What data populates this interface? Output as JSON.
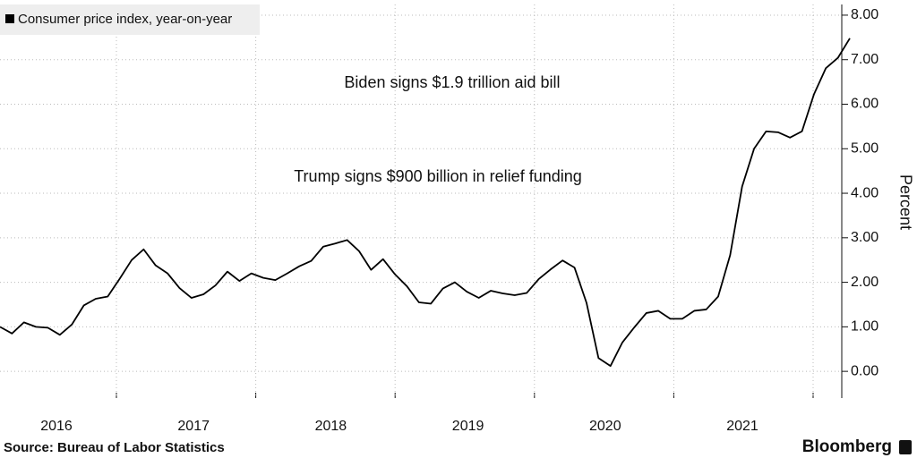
{
  "chart_data": {
    "type": "line",
    "legend_label": "Consumer price index, year-on-year",
    "annotations": [
      "Biden signs $1.9 trillion aid bill",
      "Trump signs $900 billion in relief funding"
    ],
    "y_axis_label": "Percent",
    "source": "Source: Bureau of Labor Statistics",
    "brand": "Bloomberg",
    "year_labels": [
      "2016",
      "2017",
      "2018",
      "2019",
      "2020",
      "2021"
    ],
    "categories": [
      null,
      null,
      null,
      null,
      null,
      null,
      null,
      null,
      null,
      null,
      null,
      null,
      null,
      null,
      null,
      null,
      null,
      null,
      null,
      null,
      null,
      null,
      null,
      null,
      null,
      null,
      null,
      null,
      null,
      null,
      null,
      null,
      null,
      null,
      null,
      null,
      null,
      null,
      null,
      null,
      null,
      null,
      null,
      null,
      null,
      null,
      null,
      null,
      null,
      null,
      null,
      null,
      null,
      null,
      null,
      null,
      null,
      null,
      null,
      null,
      null,
      null,
      null,
      null,
      null,
      null,
      null,
      null,
      null,
      null,
      null,
      null
    ],
    "series": [
      {
        "name": "Consumer price index, year-on-year",
        "color": "#000000",
        "values": [
          1.0,
          0.85,
          1.1,
          1.0,
          0.98,
          0.82,
          1.05,
          1.48,
          1.63,
          1.68,
          2.08,
          2.5,
          2.74,
          2.38,
          2.2,
          1.87,
          1.65,
          1.73,
          1.93,
          2.24,
          2.03,
          2.2,
          2.1,
          2.05,
          2.2,
          2.36,
          2.48,
          2.8,
          2.87,
          2.95,
          2.7,
          2.28,
          2.52,
          2.18,
          1.91,
          1.55,
          1.52,
          1.86,
          2.0,
          1.79,
          1.65,
          1.81,
          1.75,
          1.71,
          1.76,
          2.07,
          2.29,
          2.49,
          2.33,
          1.54,
          0.3,
          0.12,
          0.65,
          0.99,
          1.31,
          1.36,
          1.18,
          1.18,
          1.36,
          1.39,
          1.68,
          2.61,
          4.15,
          5.0,
          5.39,
          5.37,
          5.25,
          5.39,
          6.22,
          6.81,
          7.04,
          7.48
        ]
      }
    ],
    "ylim": [
      -0.6,
      8.24
    ],
    "yticks": [
      {
        "value": 0,
        "label": "0.00"
      },
      {
        "value": 1,
        "label": "1.00"
      },
      {
        "value": 2,
        "label": "2.00"
      },
      {
        "value": 3,
        "label": "3.00"
      },
      {
        "value": 4,
        "label": "4.00"
      },
      {
        "value": 5,
        "label": "5.00"
      },
      {
        "value": 6,
        "label": "6.00"
      },
      {
        "value": 7,
        "label": "7.00"
      },
      {
        "value": 8,
        "label": "8.00"
      }
    ],
    "grid": true
  }
}
